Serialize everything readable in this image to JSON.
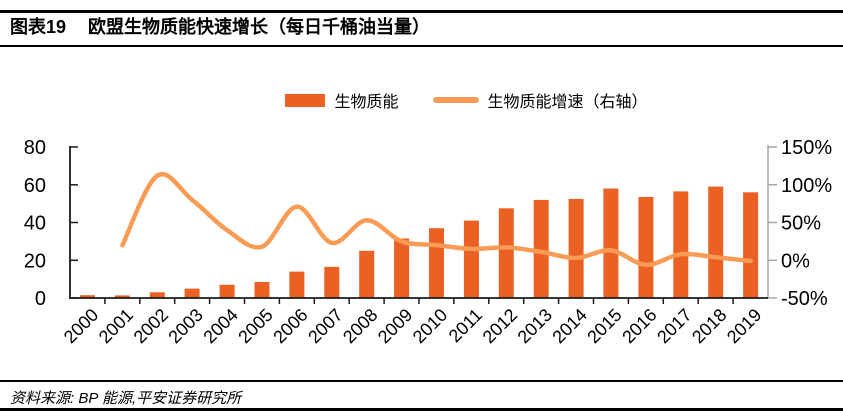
{
  "title": {
    "label": "图表19",
    "text": "欧盟生物质能快速增长（每日千桶油当量）"
  },
  "legend": {
    "items": [
      {
        "label": "生物质能",
        "marker": "bar"
      },
      {
        "label": "生物质能增速（右轴）",
        "marker": "line"
      }
    ]
  },
  "source": {
    "text": "资料来源: BP 能源,平安证券研究所"
  },
  "colors": {
    "bar": "#EB6124",
    "line": "#F89B54",
    "axis": "#1A1A1A",
    "right_axis": "#A6A6A6"
  },
  "chart_data": {
    "type": "bar+line",
    "title": "欧盟生物质能快速增长（每日千桶油当量）",
    "categories": [
      "2000",
      "2001",
      "2002",
      "2003",
      "2004",
      "2005",
      "2006",
      "2007",
      "2008",
      "2009",
      "2010",
      "2011",
      "2012",
      "2013",
      "2014",
      "2015",
      "2016",
      "2017",
      "2018",
      "2019"
    ],
    "series": [
      {
        "name": "生物质能",
        "type": "bar",
        "axis": "left",
        "values": [
          1.5,
          1.4,
          3,
          5,
          7,
          8.5,
          14,
          16.5,
          25,
          31.5,
          37,
          41,
          47.5,
          52,
          52.5,
          58,
          53.5,
          56.5,
          59,
          56
        ]
      },
      {
        "name": "生物质能增速（右轴）",
        "type": "line",
        "axis": "right",
        "values": [
          null,
          20,
          112,
          80,
          40,
          18,
          71,
          23,
          53,
          25,
          20,
          15,
          17,
          11,
          3,
          13,
          -6,
          8,
          4,
          -1
        ]
      }
    ],
    "left_axis": {
      "min": 0,
      "max": 80,
      "tick_values": [
        0,
        20,
        40,
        60,
        80
      ],
      "tick_labels": [
        "0",
        "20",
        "40",
        "60",
        "80"
      ]
    },
    "right_axis": {
      "min": -50,
      "max": 150,
      "tick_values": [
        -50,
        0,
        50,
        100,
        150
      ],
      "tick_labels": [
        "-50%",
        "0%",
        "50%",
        "100%",
        "150%"
      ]
    },
    "grid": false,
    "legend_position": "top-center"
  }
}
